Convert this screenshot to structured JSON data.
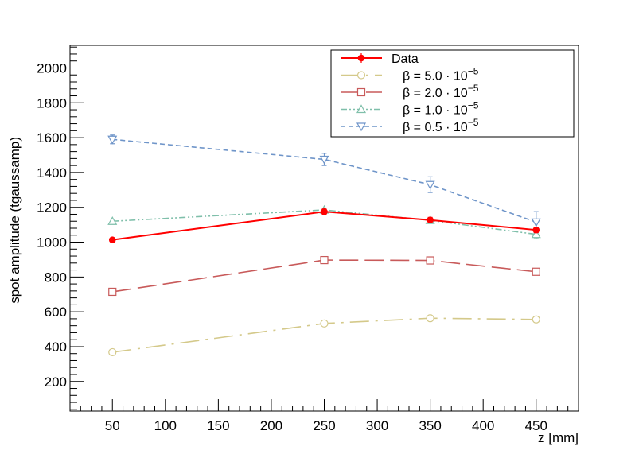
{
  "chart_data": {
    "type": "line",
    "xlabel": "z [mm]",
    "ylabel": "spot amplitude (tgaussamp)",
    "xlim": [
      10,
      490
    ],
    "ylim": [
      30,
      2130
    ],
    "x_ticks": [
      50,
      100,
      150,
      200,
      250,
      300,
      350,
      400,
      450
    ],
    "y_ticks": [
      200,
      400,
      600,
      800,
      1000,
      1200,
      1400,
      1600,
      1800,
      2000
    ],
    "grid": false,
    "legend_position": "top-right",
    "x": [
      50,
      250,
      350,
      450
    ],
    "series": [
      {
        "name": "Data",
        "legend_parts": [
          "Data",
          "",
          ""
        ],
        "values": [
          1013,
          1175,
          1127,
          1070
        ],
        "errors": [
          10,
          15,
          15,
          15
        ],
        "color": "#ff0000",
        "marker": "circle-filled",
        "dash": ""
      },
      {
        "name": "β = 5.0 · 10⁻⁵",
        "legend_parts": [
          "β = 5.0 · 10",
          "−5",
          ""
        ],
        "values": [
          368,
          533,
          563,
          556
        ],
        "errors": [
          0,
          0,
          0,
          0
        ],
        "color": "#d4c98a",
        "marker": "circle-open",
        "dash": "24,8,3,8"
      },
      {
        "name": "β = 2.0 · 10⁻⁵",
        "legend_parts": [
          "β = 2.0 · 10",
          "−5",
          ""
        ],
        "values": [
          715,
          897,
          895,
          830
        ],
        "errors": [
          0,
          0,
          0,
          0
        ],
        "color": "#c85a5a",
        "marker": "square-open",
        "dash": "24,8"
      },
      {
        "name": "β = 1.0 · 10⁻⁵",
        "legend_parts": [
          "β = 1.0 · 10",
          "−5",
          ""
        ],
        "values": [
          1120,
          1185,
          1125,
          1045
        ],
        "errors": [
          0,
          0,
          0,
          25
        ],
        "color": "#7fbfaa",
        "marker": "triangle-up-open",
        "dash": "8,3,2,3,2,3"
      },
      {
        "name": "β = 0.5 · 10⁻⁵",
        "legend_parts": [
          "β = 0.5 · 10",
          "−5",
          ""
        ],
        "values": [
          1590,
          1475,
          1330,
          1115
        ],
        "errors": [
          25,
          35,
          45,
          60
        ],
        "color": "#6f95c9",
        "marker": "triangle-down-open",
        "dash": "6,4"
      }
    ]
  }
}
